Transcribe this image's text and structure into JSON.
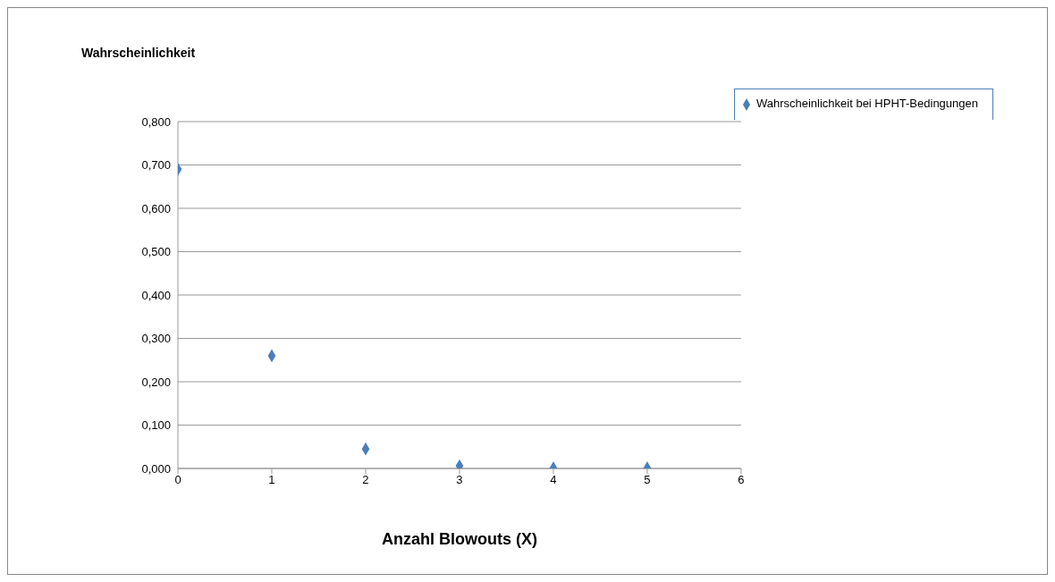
{
  "chart_data": {
    "type": "scatter",
    "ylabel": "Wahrscheinlichkeit",
    "xlabel": "Anzahl Blowouts (X)",
    "x": [
      0,
      1,
      2,
      3,
      4,
      5
    ],
    "series": [
      {
        "name": "Wahrscheinlichkeit bei HPHT-Bedingungen",
        "color": "#4a7ebb",
        "values": [
          0.69,
          0.26,
          0.045,
          0.006,
          0.001,
          0.001
        ]
      }
    ],
    "xlim": [
      0,
      6
    ],
    "xticks": [
      0,
      1,
      2,
      3,
      4,
      5,
      6
    ],
    "ylim": [
      0,
      0.8
    ],
    "yticks": [
      {
        "value": 0,
        "label": "0,000"
      },
      {
        "value": 0.1,
        "label": "0,100"
      },
      {
        "value": 0.2,
        "label": "0,200"
      },
      {
        "value": 0.3,
        "label": "0,300"
      },
      {
        "value": 0.4,
        "label": "0,400"
      },
      {
        "value": 0.5,
        "label": "0,500"
      },
      {
        "value": 0.6,
        "label": "0,600"
      },
      {
        "value": 0.7,
        "label": "0,700"
      },
      {
        "value": 0.8,
        "label": "0,800"
      }
    ],
    "grid": "y",
    "legend": "top right",
    "marker": "diamond"
  }
}
